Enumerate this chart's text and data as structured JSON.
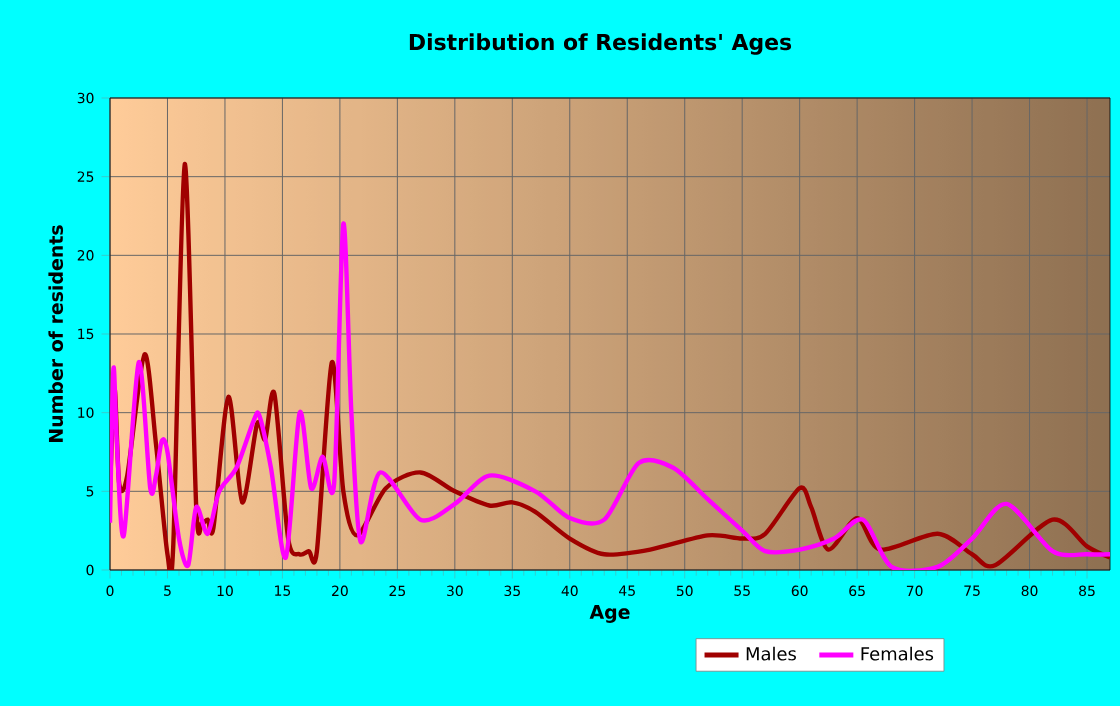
{
  "chart_data": {
    "type": "line",
    "title": "Distribution of Residents' Ages",
    "xlabel": "Age",
    "ylabel": "Number of residents",
    "xlim": [
      0,
      87
    ],
    "ylim": [
      0,
      30
    ],
    "xticks": [
      0,
      5,
      10,
      15,
      20,
      25,
      30,
      35,
      40,
      45,
      50,
      55,
      60,
      65,
      70,
      75,
      80,
      85
    ],
    "yticks": [
      0,
      5,
      10,
      15,
      20,
      25,
      30
    ],
    "grid": true,
    "legend": "bottom",
    "marker": "none",
    "line_style": "solid",
    "series": [
      {
        "name": "Males",
        "color": "#a00000",
        "x": [
          0,
          0.4,
          0.8,
          1.5,
          3,
          4,
          5,
          5.5,
          6.5,
          7.5,
          8,
          8.5,
          9,
          10.3,
          11.5,
          12.8,
          13.5,
          14.3,
          15.5,
          16.5,
          17.3,
          18,
          19.3,
          20.3,
          21.5,
          24,
          27,
          30,
          33,
          35,
          37,
          40,
          43,
          47,
          52,
          55,
          57,
          60,
          61,
          62.5,
          65,
          67,
          72,
          75,
          77,
          82,
          85,
          87
        ],
        "values": [
          5,
          11.5,
          5.5,
          6,
          13.7,
          8,
          1,
          1.5,
          25.8,
          4,
          3,
          3.2,
          2.7,
          11,
          4.3,
          9.3,
          8.3,
          11.2,
          2,
          1,
          1.2,
          1.2,
          13.2,
          5,
          2.2,
          5.2,
          6.2,
          5,
          4.1,
          4.3,
          3.7,
          2,
          1,
          1.3,
          2.2,
          2,
          2.3,
          5.2,
          4,
          1.3,
          3.3,
          1.3,
          2.3,
          1,
          0.3,
          3.2,
          1.5,
          0.8
        ]
      },
      {
        "name": "Females",
        "color": "#ff00ff",
        "x": [
          0,
          0.3,
          0.6,
          1.2,
          2.5,
          3.5,
          4,
          4.5,
          5,
          6,
          6.8,
          7.5,
          8.5,
          9.5,
          11,
          12.5,
          13,
          14,
          15.3,
          16.5,
          17.5,
          18.5,
          19.5,
          20.3,
          21,
          21.8,
          23.5,
          27,
          30,
          33,
          37,
          40,
          43,
          46,
          49,
          52,
          55,
          57,
          60,
          63,
          65.5,
          68,
          72,
          75,
          78,
          82,
          85,
          87
        ],
        "values": [
          3,
          12.8,
          8,
          2.2,
          13.2,
          5.2,
          6,
          8.2,
          7.5,
          2,
          0.3,
          4,
          2.3,
          5,
          6.5,
          9.5,
          9.8,
          6.5,
          0.8,
          10,
          5.2,
          7.2,
          5.5,
          22,
          10,
          1.8,
          6.2,
          3.2,
          4.2,
          6,
          5,
          3.3,
          3.2,
          6.8,
          6.5,
          4.5,
          2.5,
          1.2,
          1.3,
          2,
          3.2,
          0.2,
          0.2,
          2,
          4.2,
          1.2,
          1,
          1
        ]
      }
    ]
  }
}
